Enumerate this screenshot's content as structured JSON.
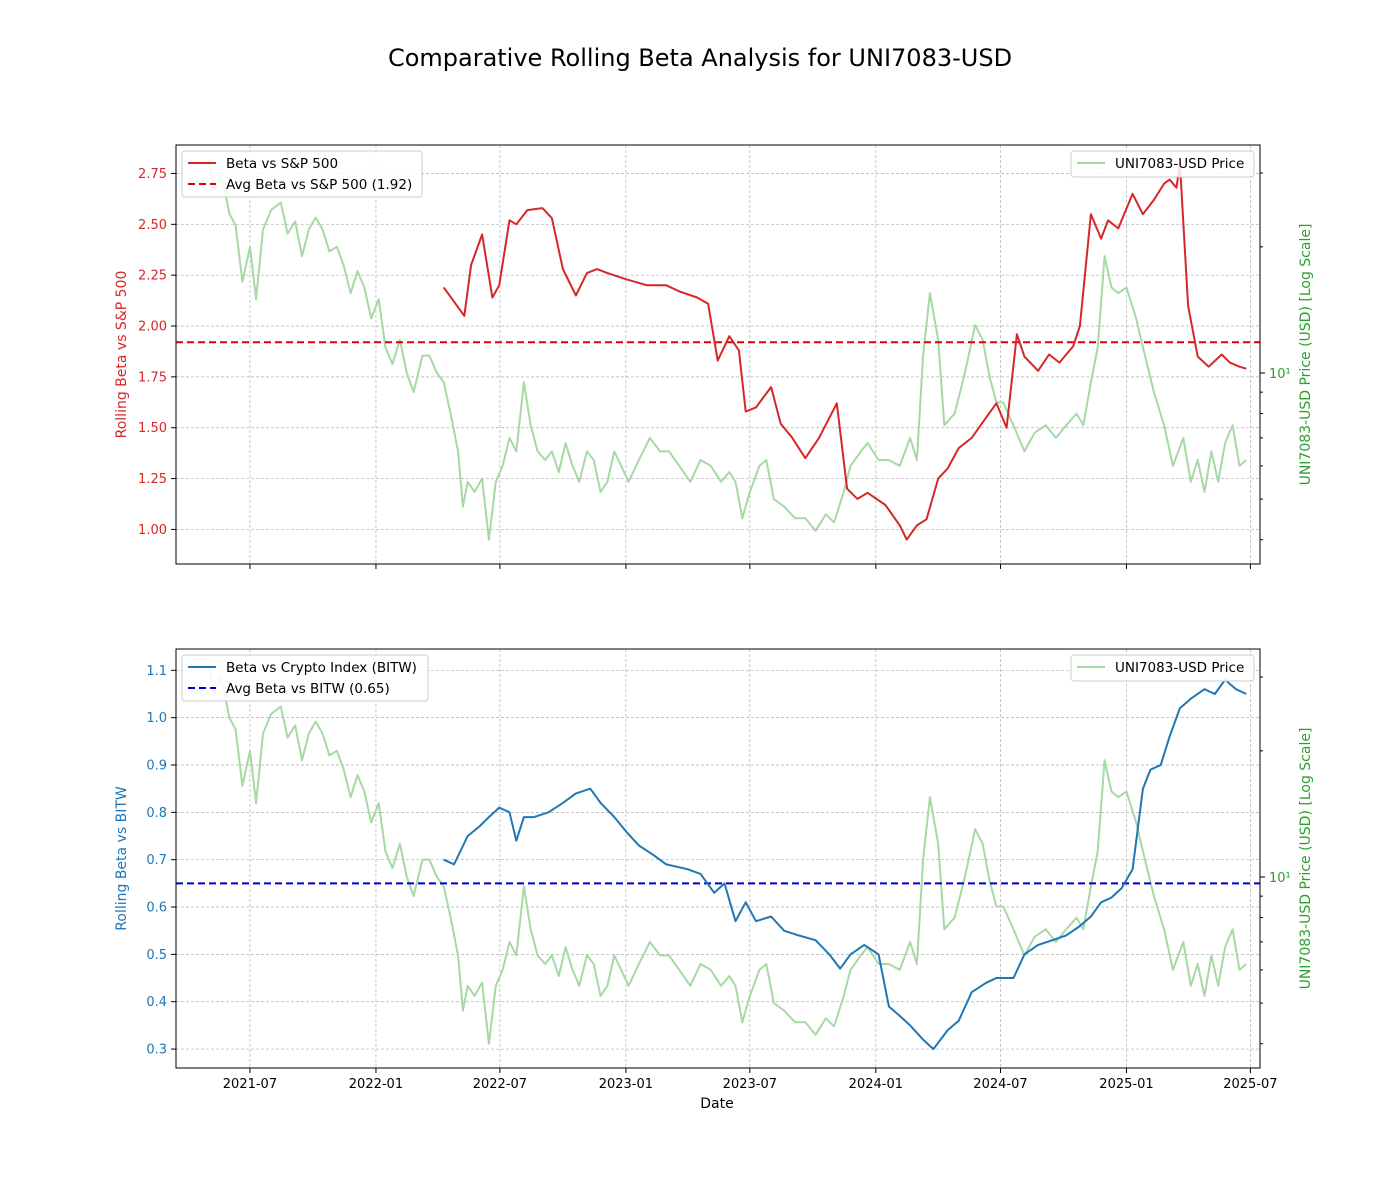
{
  "title": "Comparative Rolling Beta Analysis for UNI7083-USD",
  "colors": {
    "sp500": "#d62728",
    "sp500_avg": "#e00000",
    "bitw": "#1f77b4",
    "bitw_avg": "#0000cc",
    "price": "#a6d9a3",
    "price_axis": "#2ca02c"
  },
  "x_ticks": [
    "2021-07",
    "2022-01",
    "2022-07",
    "2023-01",
    "2023-07",
    "2024-01",
    "2024-07",
    "2025-01",
    "2025-07"
  ],
  "x_label": "Date",
  "x_range": [
    "2021-03-15",
    "2025-07-15"
  ],
  "price_axis_label": "UNI7083-USD Price (USD) [Log Scale]",
  "price_tick_label": "10¹",
  "price_log_range": [
    3.5,
    35
  ],
  "chart_data": [
    {
      "type": "line",
      "ylabel": "Rolling Beta vs S&P 500",
      "ylim": [
        0.83,
        2.89
      ],
      "yticks": [
        "1.00",
        "1.25",
        "1.50",
        "1.75",
        "2.00",
        "2.25",
        "2.50",
        "2.75"
      ],
      "legend_left": {
        "placement": "upper-left",
        "entries": [
          "Beta vs S&P 500",
          "Avg Beta vs S&P 500 (1.92)"
        ]
      },
      "legend_right": {
        "placement": "upper-right",
        "entries": [
          "UNI7083-USD Price"
        ]
      },
      "avg": 1.92,
      "series": [
        {
          "name": "Beta vs S&P 500",
          "x": [
            "2022-04-10",
            "2022-04-25",
            "2022-05-10",
            "2022-05-20",
            "2022-06-05",
            "2022-06-20",
            "2022-06-30",
            "2022-07-15",
            "2022-07-25",
            "2022-08-10",
            "2022-09-01",
            "2022-09-15",
            "2022-10-01",
            "2022-10-20",
            "2022-11-05",
            "2022-11-20",
            "2022-12-05",
            "2023-01-01",
            "2023-02-01",
            "2023-03-01",
            "2023-03-20",
            "2023-04-15",
            "2023-05-01",
            "2023-05-15",
            "2023-06-01",
            "2023-06-15",
            "2023-06-25",
            "2023-07-10",
            "2023-08-01",
            "2023-08-15",
            "2023-09-01",
            "2023-09-20",
            "2023-10-10",
            "2023-11-05",
            "2023-11-20",
            "2023-12-05",
            "2023-12-20",
            "2024-01-15",
            "2024-02-05",
            "2024-02-15",
            "2024-03-01",
            "2024-03-15",
            "2024-04-01",
            "2024-04-15",
            "2024-05-01",
            "2024-05-20",
            "2024-06-10",
            "2024-06-25",
            "2024-07-10",
            "2024-07-25",
            "2024-08-05",
            "2024-08-25",
            "2024-09-10",
            "2024-09-25",
            "2024-10-15",
            "2024-10-25",
            "2024-11-10",
            "2024-11-25",
            "2024-12-05",
            "2024-12-20",
            "2025-01-10",
            "2025-01-25",
            "2025-02-10",
            "2025-02-25",
            "2025-03-05",
            "2025-03-15",
            "2025-03-20",
            "2025-04-01",
            "2025-04-15",
            "2025-05-01",
            "2025-05-20",
            "2025-06-01",
            "2025-06-15",
            "2025-06-25"
          ],
          "values": [
            2.19,
            2.12,
            2.05,
            2.3,
            2.45,
            2.14,
            2.2,
            2.52,
            2.5,
            2.57,
            2.58,
            2.53,
            2.28,
            2.15,
            2.26,
            2.28,
            2.26,
            2.23,
            2.2,
            2.2,
            2.17,
            2.14,
            2.11,
            1.83,
            1.95,
            1.88,
            1.58,
            1.6,
            1.7,
            1.52,
            1.45,
            1.35,
            1.45,
            1.62,
            1.2,
            1.15,
            1.18,
            1.12,
            1.02,
            0.95,
            1.02,
            1.05,
            1.25,
            1.3,
            1.4,
            1.45,
            1.55,
            1.62,
            1.5,
            1.96,
            1.85,
            1.78,
            1.86,
            1.82,
            1.9,
            2.0,
            2.55,
            2.43,
            2.52,
            2.48,
            2.65,
            2.55,
            2.62,
            2.7,
            2.72,
            2.68,
            2.8,
            2.1,
            1.85,
            1.8,
            1.86,
            1.82,
            1.8,
            1.79
          ]
        }
      ]
    },
    {
      "type": "line",
      "ylabel": "Rolling Beta vs BITW",
      "ylim": [
        0.26,
        1.145
      ],
      "yticks": [
        "0.3",
        "0.4",
        "0.5",
        "0.6",
        "0.7",
        "0.8",
        "0.9",
        "1.0",
        "1.1"
      ],
      "legend_left": {
        "placement": "upper-left",
        "entries": [
          "Beta vs Crypto Index (BITW)",
          "Avg Beta vs BITW (0.65)"
        ]
      },
      "legend_right": {
        "placement": "upper-right",
        "entries": [
          "UNI7083-USD Price"
        ]
      },
      "avg": 0.65,
      "series": [
        {
          "name": "Beta vs Crypto Index (BITW)",
          "x": [
            "2022-04-10",
            "2022-04-25",
            "2022-05-15",
            "2022-06-01",
            "2022-06-15",
            "2022-06-30",
            "2022-07-15",
            "2022-07-25",
            "2022-08-05",
            "2022-08-20",
            "2022-09-10",
            "2022-10-01",
            "2022-10-20",
            "2022-11-10",
            "2022-11-25",
            "2022-12-15",
            "2023-01-01",
            "2023-01-20",
            "2023-02-10",
            "2023-03-01",
            "2023-04-01",
            "2023-04-20",
            "2023-05-10",
            "2023-05-25",
            "2023-06-10",
            "2023-06-25",
            "2023-07-10",
            "2023-08-01",
            "2023-08-20",
            "2023-09-10",
            "2023-10-05",
            "2023-10-25",
            "2023-11-10",
            "2023-11-25",
            "2023-12-15",
            "2024-01-05",
            "2024-01-20",
            "2024-02-05",
            "2024-02-20",
            "2024-03-10",
            "2024-03-25",
            "2024-04-15",
            "2024-05-01",
            "2024-05-20",
            "2024-06-10",
            "2024-06-25",
            "2024-07-20",
            "2024-08-05",
            "2024-08-25",
            "2024-09-15",
            "2024-10-05",
            "2024-10-25",
            "2024-11-10",
            "2024-11-25",
            "2024-12-10",
            "2024-12-25",
            "2025-01-10",
            "2025-01-25",
            "2025-02-05",
            "2025-02-20",
            "2025-03-05",
            "2025-03-20",
            "2025-04-05",
            "2025-04-25",
            "2025-05-10",
            "2025-05-25",
            "2025-06-10",
            "2025-06-25"
          ],
          "values": [
            0.7,
            0.69,
            0.75,
            0.77,
            0.79,
            0.81,
            0.8,
            0.74,
            0.79,
            0.79,
            0.8,
            0.82,
            0.84,
            0.85,
            0.82,
            0.79,
            0.76,
            0.73,
            0.71,
            0.69,
            0.68,
            0.67,
            0.63,
            0.65,
            0.57,
            0.61,
            0.57,
            0.58,
            0.55,
            0.54,
            0.53,
            0.5,
            0.47,
            0.5,
            0.52,
            0.5,
            0.39,
            0.37,
            0.35,
            0.32,
            0.3,
            0.34,
            0.36,
            0.42,
            0.44,
            0.45,
            0.45,
            0.5,
            0.52,
            0.53,
            0.54,
            0.56,
            0.58,
            0.61,
            0.62,
            0.64,
            0.68,
            0.85,
            0.89,
            0.9,
            0.96,
            1.02,
            1.04,
            1.06,
            1.05,
            1.08,
            1.06,
            1.05
          ]
        }
      ]
    }
  ],
  "price_series": {
    "name": "UNI7083-USD Price",
    "x": [
      "2021-05-01",
      "2021-05-10",
      "2021-05-20",
      "2021-06-01",
      "2021-06-10",
      "2021-06-20",
      "2021-07-01",
      "2021-07-10",
      "2021-07-20",
      "2021-08-01",
      "2021-08-15",
      "2021-08-25",
      "2021-09-05",
      "2021-09-15",
      "2021-09-25",
      "2021-10-05",
      "2021-10-15",
      "2021-10-25",
      "2021-11-05",
      "2021-11-15",
      "2021-11-25",
      "2021-12-05",
      "2021-12-15",
      "2021-12-25",
      "2022-01-05",
      "2022-01-15",
      "2022-01-25",
      "2022-02-05",
      "2022-02-15",
      "2022-02-25",
      "2022-03-10",
      "2022-03-20",
      "2022-03-31",
      "2022-04-10",
      "2022-04-20",
      "2022-05-01",
      "2022-05-08",
      "2022-05-15",
      "2022-05-25",
      "2022-06-05",
      "2022-06-15",
      "2022-06-25",
      "2022-07-05",
      "2022-07-15",
      "2022-07-25",
      "2022-08-05",
      "2022-08-15",
      "2022-08-25",
      "2022-09-05",
      "2022-09-15",
      "2022-09-25",
      "2022-10-05",
      "2022-10-15",
      "2022-10-25",
      "2022-11-05",
      "2022-11-15",
      "2022-11-25",
      "2022-12-05",
      "2022-12-15",
      "2022-12-25",
      "2023-01-05",
      "2023-01-20",
      "2023-02-05",
      "2023-02-20",
      "2023-03-05",
      "2023-03-20",
      "2023-04-05",
      "2023-04-20",
      "2023-05-05",
      "2023-05-20",
      "2023-06-01",
      "2023-06-10",
      "2023-06-20",
      "2023-07-01",
      "2023-07-15",
      "2023-07-25",
      "2023-08-05",
      "2023-08-20",
      "2023-09-05",
      "2023-09-20",
      "2023-10-05",
      "2023-10-20",
      "2023-11-01",
      "2023-11-15",
      "2023-11-25",
      "2023-12-10",
      "2023-12-20",
      "2024-01-05",
      "2024-01-20",
      "2024-02-05",
      "2024-02-20",
      "2024-03-01",
      "2024-03-10",
      "2024-03-20",
      "2024-04-01",
      "2024-04-10",
      "2024-04-25",
      "2024-05-10",
      "2024-05-25",
      "2024-06-05",
      "2024-06-15",
      "2024-06-25",
      "2024-07-05",
      "2024-07-20",
      "2024-08-05",
      "2024-08-20",
      "2024-09-05",
      "2024-09-20",
      "2024-10-05",
      "2024-10-20",
      "2024-10-30",
      "2024-11-10",
      "2024-11-20",
      "2024-11-30",
      "2024-12-10",
      "2024-12-20",
      "2025-01-01",
      "2025-01-15",
      "2025-01-31",
      "2025-02-10",
      "2025-02-25",
      "2025-03-10",
      "2025-03-25",
      "2025-04-05",
      "2025-04-15",
      "2025-04-25",
      "2025-05-05",
      "2025-05-15",
      "2025-05-25",
      "2025-06-05",
      "2025-06-15",
      "2025-06-25"
    ],
    "values": [
      32.0,
      27.5,
      30.0,
      24.0,
      22.5,
      16.5,
      20.0,
      15.0,
      22.0,
      24.5,
      25.5,
      21.5,
      23.0,
      19.0,
      22.0,
      23.5,
      22.0,
      19.5,
      20.0,
      18.0,
      15.5,
      17.5,
      16.0,
      13.5,
      15.0,
      11.5,
      10.5,
      12.0,
      10.0,
      9.0,
      11.0,
      11.0,
      10.0,
      9.5,
      8.0,
      6.5,
      4.8,
      5.5,
      5.2,
      5.6,
      4.0,
      5.5,
      6.0,
      7.0,
      6.5,
      9.5,
      7.5,
      6.5,
      6.2,
      6.5,
      5.8,
      6.8,
      6.0,
      5.5,
      6.5,
      6.2,
      5.2,
      5.5,
      6.5,
      6.0,
      5.5,
      6.2,
      7.0,
      6.5,
      6.5,
      6.0,
      5.5,
      6.2,
      6.0,
      5.5,
      5.8,
      5.5,
      4.5,
      5.2,
      6.0,
      6.2,
      5.0,
      4.8,
      4.5,
      4.5,
      4.2,
      4.6,
      4.4,
      5.2,
      6.0,
      6.5,
      6.8,
      6.2,
      6.2,
      6.0,
      7.0,
      6.2,
      11.0,
      15.5,
      12.0,
      7.5,
      8.0,
      10.0,
      13.0,
      12.0,
      9.8,
      8.5,
      8.5,
      7.5,
      6.5,
      7.2,
      7.5,
      7.0,
      7.5,
      8.0,
      7.5,
      9.5,
      11.5,
      19.0,
      16.0,
      15.5,
      16.0,
      13.5,
      10.5,
      9.0,
      7.5,
      6.0,
      7.0,
      5.5,
      6.2,
      5.2,
      6.5,
      5.5,
      6.8,
      7.5,
      6.0,
      6.2
    ]
  }
}
